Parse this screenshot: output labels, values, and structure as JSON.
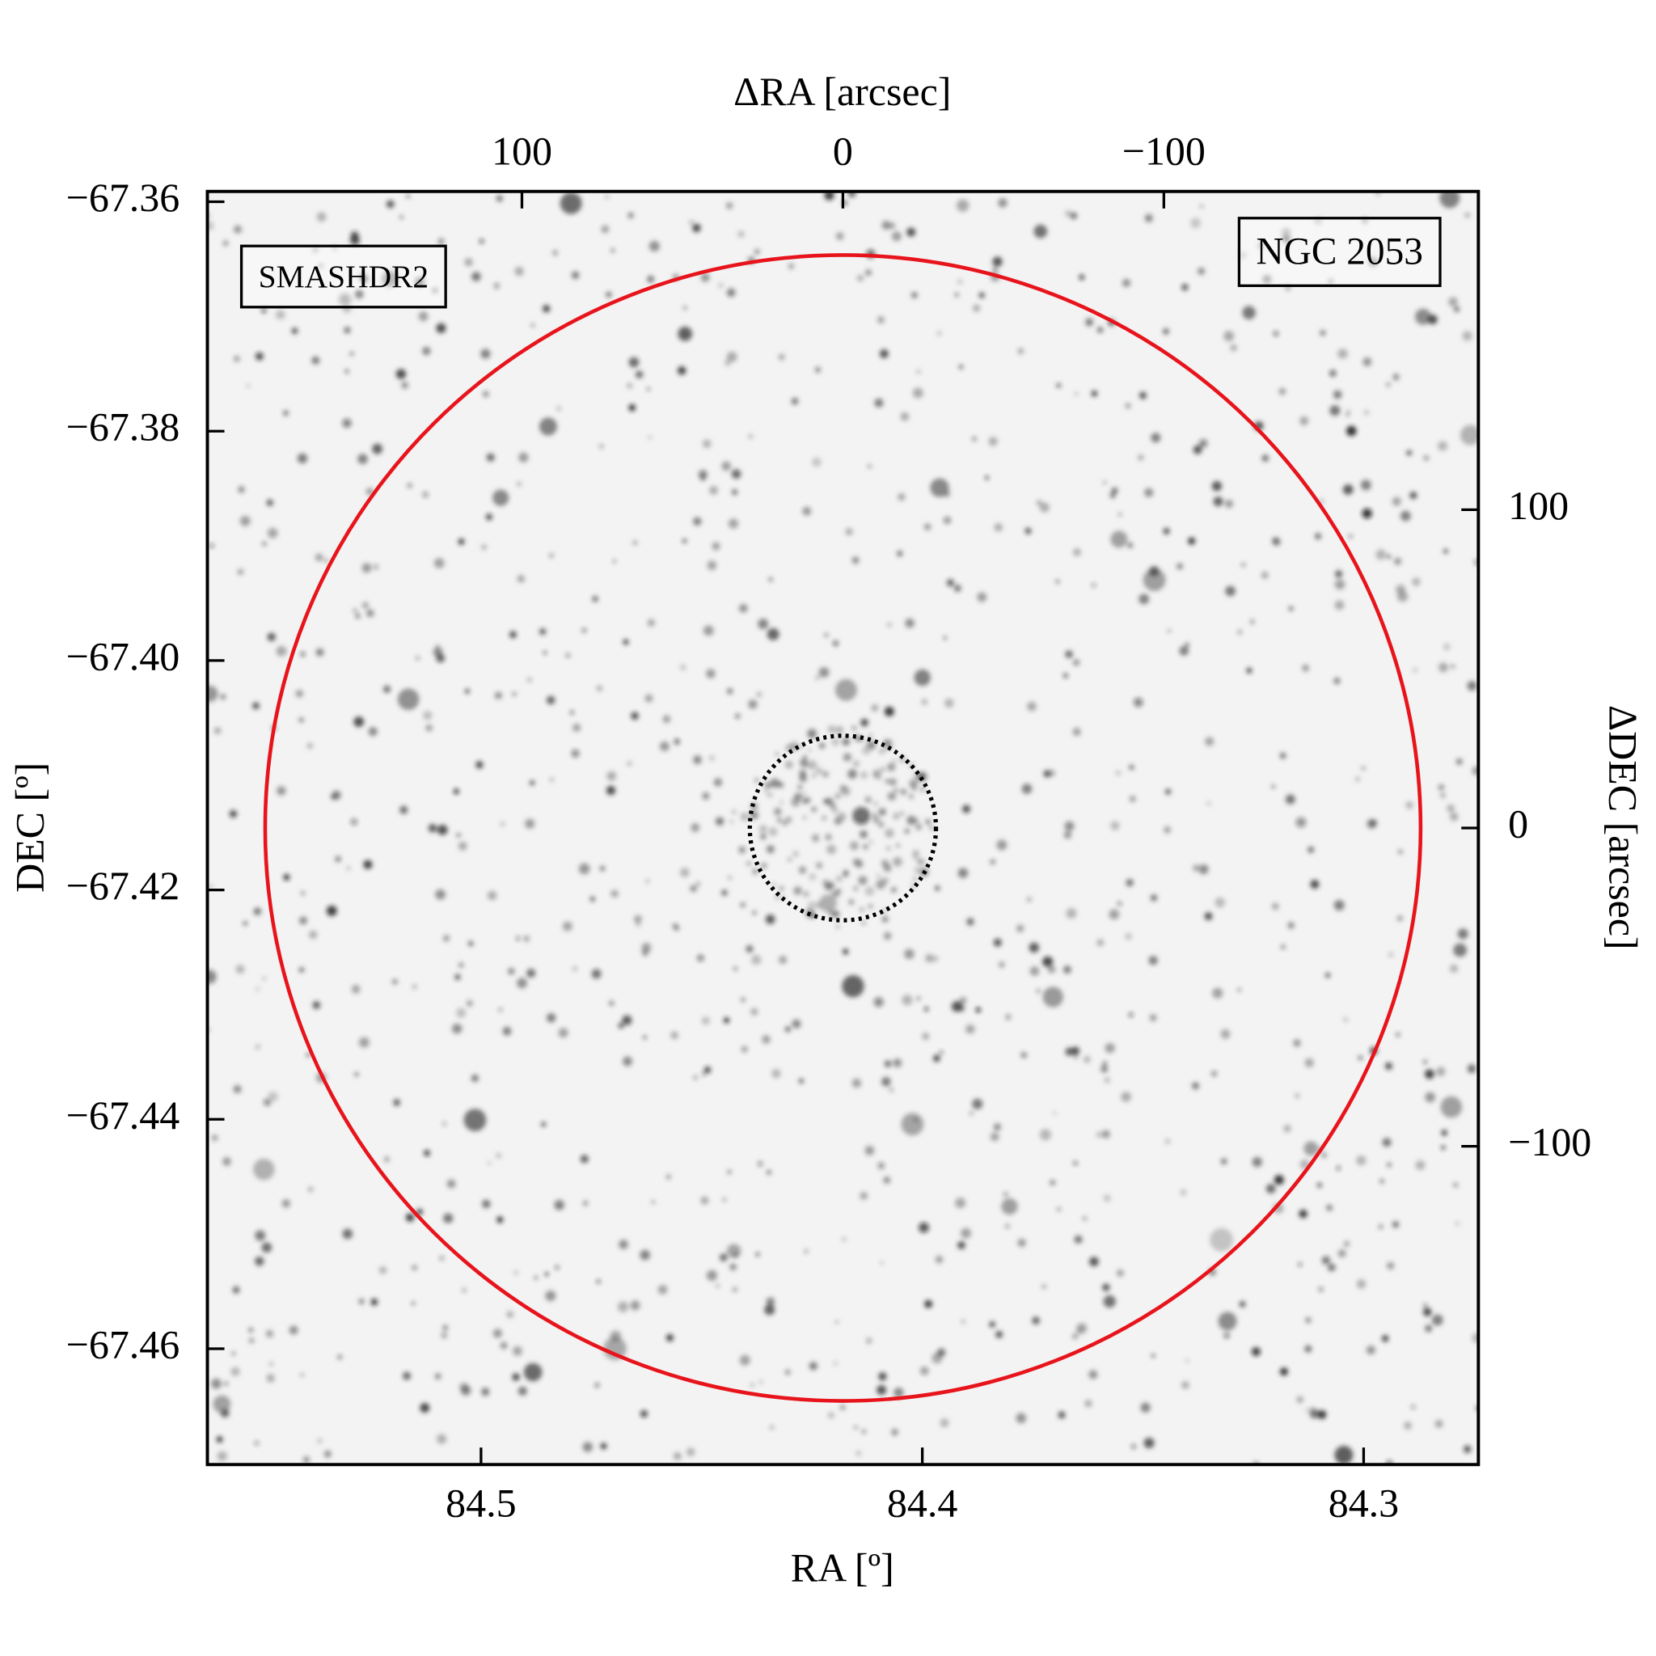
{
  "chart_data": {
    "type": "image",
    "xlabel": "RA [º]",
    "ylabel": "DEC [º]",
    "x2label": "ΔRA [arcsec]",
    "y2label": "ΔDEC [arcsec]",
    "xlim": [
      84.562,
      84.274
    ],
    "xticks": [
      84.5,
      84.4,
      84.3
    ],
    "ylim": [
      -67.4701,
      -67.3591
    ],
    "yticks": [
      {
        "value": -67.36,
        "label": "−67.36"
      },
      {
        "value": -67.38,
        "label": "−67.38"
      },
      {
        "value": -67.4,
        "label": "−67.40"
      },
      {
        "value": -67.42,
        "label": "−67.42"
      },
      {
        "value": -67.44,
        "label": "−67.44"
      },
      {
        "value": -67.46,
        "label": "−67.46"
      }
    ],
    "x2lim": [
      198,
      -198
    ],
    "x2ticks": [
      100,
      0,
      {
        "value": -100,
        "label": "−100"
      }
    ],
    "y2lim": [
      -200,
      200
    ],
    "y2ticks": [
      100,
      0,
      {
        "value": -100,
        "label": "−100"
      }
    ],
    "circles": [
      {
        "center": [
          0,
          0
        ],
        "radius": 180,
        "color": "#e8141c",
        "style": "solid"
      },
      {
        "center": [
          0,
          0
        ],
        "radius": 29,
        "color": "#000000",
        "style": "dotted"
      }
    ],
    "annotations": [
      {
        "text": "SMASHDR2",
        "color": "#e8141c",
        "corner": "upper left"
      },
      {
        "text": "NGC 2053",
        "color": "#000000",
        "corner": "upper right"
      }
    ]
  }
}
